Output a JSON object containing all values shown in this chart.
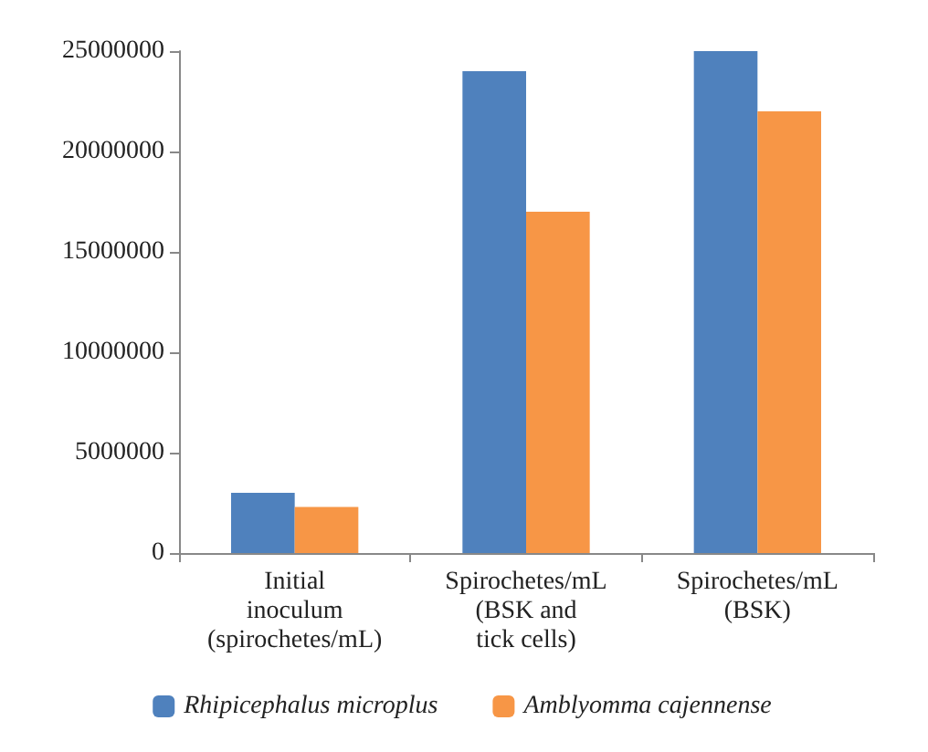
{
  "chart_data": {
    "type": "bar",
    "categories": [
      "Initial\ninoculum\n(spirochetes/mL)",
      "Spirochetes/mL\n(BSK and\ntick cells)",
      "Spirochetes/mL\n(BSK)"
    ],
    "series": [
      {
        "name": "Rhipicephalus microplus",
        "color": "#4f81bd",
        "values": [
          3000000,
          24000000,
          25000000
        ]
      },
      {
        "name": "Amblyomma cajennense",
        "color": "#f79646",
        "values": [
          2300000,
          17000000,
          22000000
        ]
      }
    ],
    "ylim": [
      0,
      25000000
    ],
    "yticks": [
      0,
      5000000,
      10000000,
      15000000,
      20000000,
      25000000
    ],
    "grid": false,
    "legend": "bottom"
  }
}
